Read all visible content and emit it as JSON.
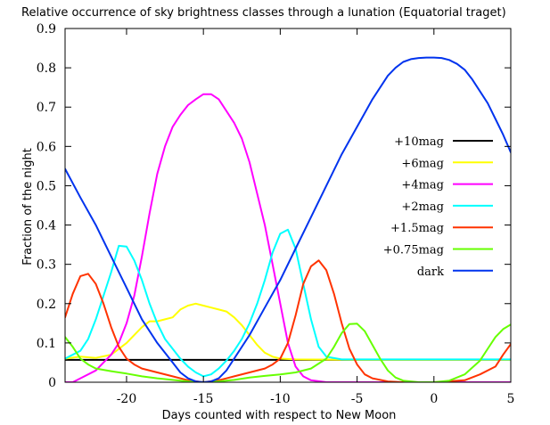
{
  "chart_data": {
    "type": "line",
    "title": "Relative occurrence of sky brightness classes through a lunation (Equatorial traget)",
    "xlabel": "Days counted with respect to New Moon",
    "ylabel": "Fraction of the night",
    "xlim": [
      -24,
      5
    ],
    "ylim": [
      0,
      0.9
    ],
    "xticks": [
      -20,
      -15,
      -10,
      -5,
      0,
      5
    ],
    "xtick_labels": [
      "-20",
      "-15",
      "-10",
      "-5",
      "0",
      "5"
    ],
    "yticks": [
      0,
      0.1,
      0.2,
      0.3,
      0.4,
      0.5,
      0.6,
      0.7,
      0.8,
      0.9
    ],
    "ytick_labels": [
      "0",
      "0.1",
      "0.2",
      "0.3",
      "0.4",
      "0.5",
      "0.6",
      "0.7",
      "0.8",
      "0.9"
    ],
    "grid": false,
    "legend_position": "right",
    "series": [
      {
        "name": "+10mag",
        "color": "#000000",
        "x": [
          -24,
          -20,
          -15,
          -10,
          -5,
          0,
          5
        ],
        "y": [
          0.057,
          0.057,
          0.057,
          0.057,
          0.057,
          0.057,
          0.057
        ]
      },
      {
        "name": "+6mag",
        "color": "#ffff00",
        "x": [
          -24,
          -23,
          -22,
          -21,
          -20,
          -19,
          -18.5,
          -18,
          -17.5,
          -17,
          -16.5,
          -16,
          -15.5,
          -15,
          -14.5,
          -14,
          -13.5,
          -13,
          -12.5,
          -12,
          -11.5,
          -11,
          -10.5,
          -10,
          -9,
          -5,
          0,
          5
        ],
        "y": [
          0.06,
          0.065,
          0.062,
          0.07,
          0.1,
          0.14,
          0.155,
          0.155,
          0.16,
          0.165,
          0.185,
          0.195,
          0.2,
          0.195,
          0.19,
          0.185,
          0.18,
          0.165,
          0.145,
          0.12,
          0.095,
          0.075,
          0.065,
          0.06,
          0.058,
          0.057,
          0.057,
          0.057
        ]
      },
      {
        "name": "+4mag",
        "color": "#ff00ff",
        "x": [
          -24,
          -23.5,
          -23,
          -22,
          -21,
          -20.5,
          -20,
          -19.5,
          -19,
          -18.5,
          -18,
          -17.5,
          -17,
          -16.5,
          -16,
          -15.5,
          -15,
          -14.5,
          -14,
          -13.5,
          -13,
          -12.5,
          -12,
          -11.5,
          -11,
          -10.5,
          -10,
          -9.5,
          -9,
          -8.5,
          -8,
          -7,
          -5,
          0,
          5
        ],
        "y": [
          0.0,
          0.0,
          0.01,
          0.03,
          0.07,
          0.1,
          0.15,
          0.22,
          0.32,
          0.43,
          0.53,
          0.6,
          0.65,
          0.68,
          0.705,
          0.72,
          0.733,
          0.733,
          0.72,
          0.69,
          0.66,
          0.62,
          0.56,
          0.48,
          0.4,
          0.3,
          0.2,
          0.1,
          0.04,
          0.015,
          0.005,
          0.0,
          0.0,
          0.0,
          0.0
        ]
      },
      {
        "name": "+2mag",
        "color": "#00ffff",
        "x": [
          -24,
          -23,
          -22.5,
          -22,
          -21.5,
          -21,
          -20.5,
          -20,
          -19.5,
          -19,
          -18.5,
          -18,
          -17.5,
          -17,
          -16.5,
          -16,
          -15.5,
          -15,
          -14.5,
          -14,
          -13.5,
          -13,
          -12.5,
          -12,
          -11.5,
          -11,
          -10.5,
          -10,
          -9.5,
          -9,
          -8.5,
          -8,
          -7.5,
          -7,
          -6,
          -5,
          0,
          5
        ],
        "y": [
          0.06,
          0.08,
          0.11,
          0.16,
          0.22,
          0.28,
          0.347,
          0.345,
          0.31,
          0.26,
          0.2,
          0.15,
          0.11,
          0.085,
          0.06,
          0.04,
          0.025,
          0.015,
          0.02,
          0.035,
          0.055,
          0.08,
          0.11,
          0.15,
          0.2,
          0.26,
          0.33,
          0.378,
          0.388,
          0.34,
          0.25,
          0.16,
          0.09,
          0.065,
          0.058,
          0.058,
          0.058,
          0.058
        ]
      },
      {
        "name": "+1.5mag",
        "color": "#ff3300",
        "x": [
          -24,
          -23.5,
          -23,
          -22.5,
          -22,
          -21.5,
          -21,
          -20.5,
          -20,
          -19.5,
          -19,
          -18,
          -17,
          -16,
          -15,
          -14,
          -13,
          -12,
          -11,
          -10.5,
          -10,
          -9.5,
          -9,
          -8.5,
          -8,
          -7.5,
          -7,
          -6.5,
          -6,
          -5.5,
          -5,
          -4.5,
          -4,
          -3,
          -2,
          0,
          2,
          3,
          4,
          4.5,
          5
        ],
        "y": [
          0.165,
          0.225,
          0.27,
          0.276,
          0.25,
          0.2,
          0.14,
          0.09,
          0.06,
          0.045,
          0.035,
          0.025,
          0.015,
          0.005,
          0.0,
          0.005,
          0.015,
          0.025,
          0.035,
          0.045,
          0.06,
          0.1,
          0.17,
          0.25,
          0.295,
          0.31,
          0.285,
          0.225,
          0.15,
          0.085,
          0.045,
          0.02,
          0.01,
          0.002,
          0.0,
          0.0,
          0.005,
          0.02,
          0.04,
          0.07,
          0.097
        ]
      },
      {
        "name": "+0.75mag",
        "color": "#66ff00",
        "x": [
          -24,
          -23.5,
          -23,
          -22.5,
          -22,
          -21,
          -20,
          -19,
          -18,
          -17,
          -16,
          -15,
          -14,
          -13,
          -12,
          -11,
          -10,
          -9,
          -8,
          -7,
          -6.5,
          -6,
          -5.5,
          -5,
          -4.5,
          -4,
          -3.5,
          -3,
          -2.5,
          -2,
          -1,
          0,
          1,
          2,
          3,
          3.5,
          4,
          4.5,
          5
        ],
        "y": [
          0.115,
          0.09,
          0.06,
          0.045,
          0.035,
          0.028,
          0.022,
          0.015,
          0.01,
          0.006,
          0.002,
          0.0,
          0.002,
          0.006,
          0.012,
          0.016,
          0.02,
          0.025,
          0.035,
          0.06,
          0.09,
          0.125,
          0.148,
          0.149,
          0.13,
          0.095,
          0.06,
          0.03,
          0.012,
          0.004,
          0.0,
          0.0,
          0.004,
          0.02,
          0.055,
          0.085,
          0.115,
          0.135,
          0.147
        ]
      },
      {
        "name": "dark",
        "color": "#0033ee",
        "x": [
          -24,
          -23,
          -22,
          -21,
          -20,
          -19,
          -18,
          -17,
          -16.5,
          -16,
          -15.5,
          -15,
          -14.5,
          -14,
          -13.5,
          -13,
          -12,
          -11,
          -10,
          -9,
          -8,
          -7,
          -6,
          -5,
          -4,
          -3,
          -2.5,
          -2,
          -1.5,
          -1,
          -0.5,
          0,
          0.5,
          1,
          1.5,
          2,
          2.5,
          3,
          3.5,
          4,
          4.5,
          5
        ],
        "y": [
          0.543,
          0.47,
          0.4,
          0.32,
          0.24,
          0.16,
          0.1,
          0.05,
          0.025,
          0.01,
          0.002,
          0.0,
          0.002,
          0.01,
          0.03,
          0.06,
          0.12,
          0.19,
          0.26,
          0.34,
          0.42,
          0.5,
          0.58,
          0.65,
          0.72,
          0.78,
          0.8,
          0.815,
          0.822,
          0.825,
          0.826,
          0.826,
          0.825,
          0.82,
          0.81,
          0.795,
          0.77,
          0.74,
          0.71,
          0.67,
          0.63,
          0.585
        ]
      }
    ]
  }
}
